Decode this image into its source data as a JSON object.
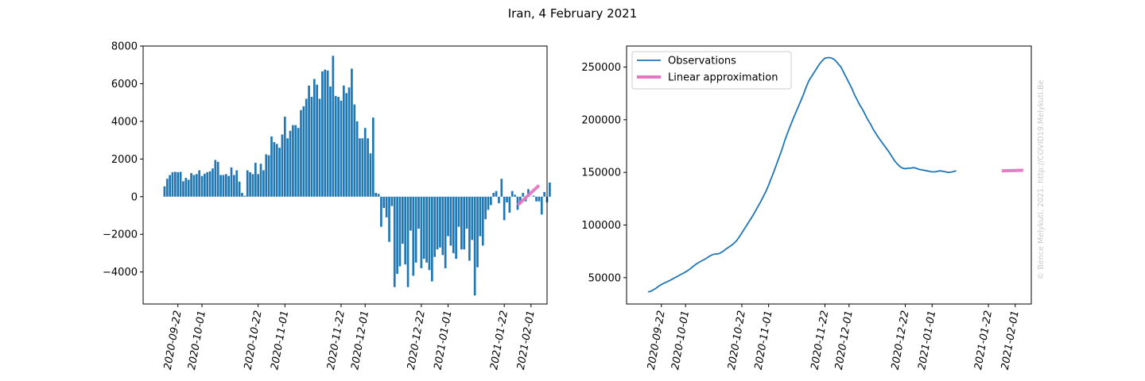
{
  "figure": {
    "title": "Iran, 4 February 2021",
    "watermark": "© Bence Melykuti, 2021. http://COVID19.Melykuti.Be"
  },
  "colors": {
    "bar": "#1f77b4",
    "observations": "#1f77b4",
    "approximation": "#e377c2",
    "watermark": "#c8c8c8"
  },
  "chart_data": [
    {
      "type": "bar",
      "ylim": [
        -5700,
        8000
      ],
      "yticks": [
        -4000,
        -2000,
        0,
        2000,
        4000,
        6000,
        8000
      ],
      "ytick_labels": [
        "−4000",
        "−2000",
        "0",
        "2000",
        "4000",
        "6000",
        "8000"
      ],
      "xlim": [
        "2020-09-09",
        "2021-02-07"
      ],
      "xticks": [
        "2020-09-22",
        "2020-10-01",
        "2020-10-22",
        "2020-11-01",
        "2020-11-22",
        "2020-12-01",
        "2020-12-22",
        "2021-01-01",
        "2021-01-22",
        "2021-02-01"
      ],
      "x_start": "2020-09-17",
      "values": [
        550,
        950,
        1150,
        1300,
        1320,
        1300,
        1320,
        820,
        1000,
        900,
        1250,
        1150,
        1200,
        1400,
        1100,
        1220,
        1300,
        1350,
        1500,
        1950,
        1850,
        1150,
        1150,
        1200,
        1100,
        1550,
        1150,
        1400,
        800,
        200,
        50,
        1400,
        1300,
        1200,
        1800,
        1200,
        1750,
        1400,
        2250,
        2200,
        3200,
        2900,
        2800,
        2600,
        3300,
        4250,
        3100,
        3500,
        3800,
        3800,
        3650,
        4600,
        4800,
        5200,
        5900,
        5300,
        6250,
        5950,
        5200,
        6650,
        6750,
        6700,
        5850,
        7480,
        5350,
        5300,
        5100,
        5900,
        5500,
        5800,
        6800,
        4900,
        4000,
        3100,
        3100,
        3650,
        3100,
        2300,
        4200,
        200,
        150,
        -1600,
        -600,
        -1100,
        -2400,
        -500,
        -4800,
        -4100,
        -3700,
        -2500,
        -3600,
        -4800,
        -1800,
        -4200,
        -3500,
        -1700,
        -3800,
        -3300,
        -3500,
        -3900,
        -4500,
        -3200,
        -2800,
        -2700,
        -3100,
        -3800,
        -2100,
        -2600,
        -3000,
        -3300,
        -1600,
        -2800,
        -2800,
        -1700,
        -3400,
        -2300,
        -5250,
        -3750,
        -2100,
        -2600,
        -1200,
        -700,
        -450,
        200,
        300,
        -350,
        950,
        -1250,
        -300,
        -850,
        300,
        100,
        -700,
        -400,
        200,
        -250,
        400,
        0,
        50,
        -250,
        -250,
        -950,
        250,
        -300,
        750
      ],
      "approximation": {
        "x": [
          "2021-01-27",
          "2021-02-04"
        ],
        "y": [
          -450,
          600
        ]
      }
    },
    {
      "type": "line",
      "ylim": [
        25000,
        270000
      ],
      "yticks": [
        50000,
        100000,
        150000,
        200000,
        250000
      ],
      "ytick_labels": [
        "50000",
        "100000",
        "150000",
        "200000",
        "250000"
      ],
      "xlim": [
        "2020-09-09",
        "2021-02-07"
      ],
      "xticks": [
        "2020-09-22",
        "2020-10-01",
        "2020-10-22",
        "2020-11-01",
        "2020-11-22",
        "2020-12-01",
        "2020-12-22",
        "2021-01-01",
        "2021-01-22",
        "2021-02-01"
      ],
      "x_start": "2020-09-17",
      "values": [
        36500,
        37000,
        38500,
        40000,
        42000,
        43500,
        44800,
        46000,
        47200,
        48500,
        50000,
        51200,
        52800,
        54000,
        55500,
        57000,
        59000,
        61000,
        63000,
        64500,
        66000,
        67200,
        68800,
        70500,
        71800,
        72500,
        72500,
        73500,
        75000,
        77000,
        78800,
        80500,
        82500,
        85000,
        88500,
        92500,
        96500,
        100500,
        104500,
        108500,
        113000,
        117500,
        122000,
        127000,
        132000,
        138000,
        144500,
        151000,
        158000,
        165000,
        172000,
        180000,
        187000,
        193500,
        200000,
        206000,
        212000,
        218000,
        224000,
        231000,
        237000,
        241000,
        245000,
        249000,
        253000,
        256000,
        258500,
        259000,
        259000,
        258000,
        256000,
        253000,
        250000,
        245000,
        240000,
        235000,
        230000,
        224000,
        219000,
        214000,
        210000,
        205000,
        200000,
        196000,
        191000,
        187000,
        183000,
        179500,
        176000,
        172500,
        169000,
        165000,
        161000,
        158000,
        155500,
        154000,
        153500,
        154000,
        154000,
        154500,
        154000,
        153000,
        152500,
        152000,
        151500,
        151000,
        150500,
        150500,
        151000,
        151500,
        151000,
        150500,
        150000,
        150200,
        150800,
        151500
      ],
      "approximation": {
        "x": [
          "2021-01-27",
          "2021-02-04"
        ],
        "y": [
          151500,
          152000
        ]
      },
      "legend": {
        "location": "upper-left",
        "entries": [
          "Observations",
          "Linear approximation"
        ]
      }
    }
  ]
}
